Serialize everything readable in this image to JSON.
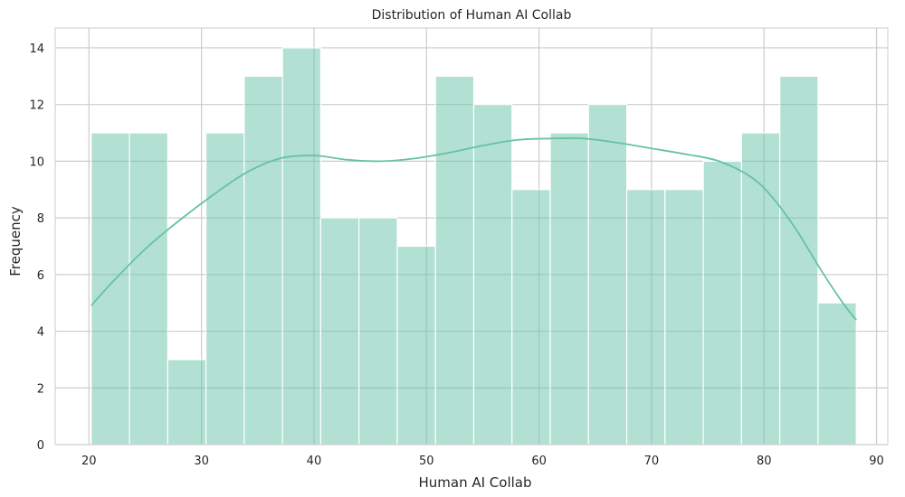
{
  "chart_data": {
    "type": "bar",
    "title": "Distribution of Human AI Collab",
    "xlabel": "Human AI Collab",
    "ylabel": "Frequency",
    "xlim": [
      17,
      91
    ],
    "ylim": [
      0,
      14.7
    ],
    "grid": true,
    "bar_color": "#66c2a5",
    "bar_opacity": 0.5,
    "kde_color": "#66c2a5",
    "xticks": [
      20,
      30,
      40,
      50,
      60,
      70,
      80,
      90
    ],
    "yticks": [
      0,
      2,
      4,
      6,
      8,
      10,
      12,
      14
    ],
    "bin_edges": [
      20.2,
      23.6,
      27.0,
      30.4,
      33.8,
      37.2,
      40.6,
      44.0,
      47.4,
      50.8,
      54.2,
      57.6,
      61.0,
      64.4,
      67.8,
      71.2,
      74.6,
      78.0,
      81.4,
      84.8,
      88.2
    ],
    "values": [
      11,
      11,
      3,
      11,
      13,
      14,
      8,
      8,
      7,
      13,
      12,
      9,
      11,
      12,
      9,
      9,
      10,
      11,
      13,
      5
    ],
    "kde": {
      "x": [
        20.2,
        22,
        25,
        28,
        31,
        34,
        37,
        40,
        43,
        46,
        49,
        52,
        55,
        58,
        61,
        64,
        67,
        70,
        73,
        76,
        79,
        81,
        83,
        85,
        87,
        88.2
      ],
      "y": [
        4.9,
        5.7,
        6.9,
        7.9,
        8.8,
        9.6,
        10.1,
        10.2,
        10.05,
        10.0,
        10.1,
        10.3,
        10.55,
        10.75,
        10.8,
        10.8,
        10.65,
        10.45,
        10.25,
        10.0,
        9.4,
        8.6,
        7.5,
        6.2,
        5.0,
        4.4
      ]
    }
  }
}
